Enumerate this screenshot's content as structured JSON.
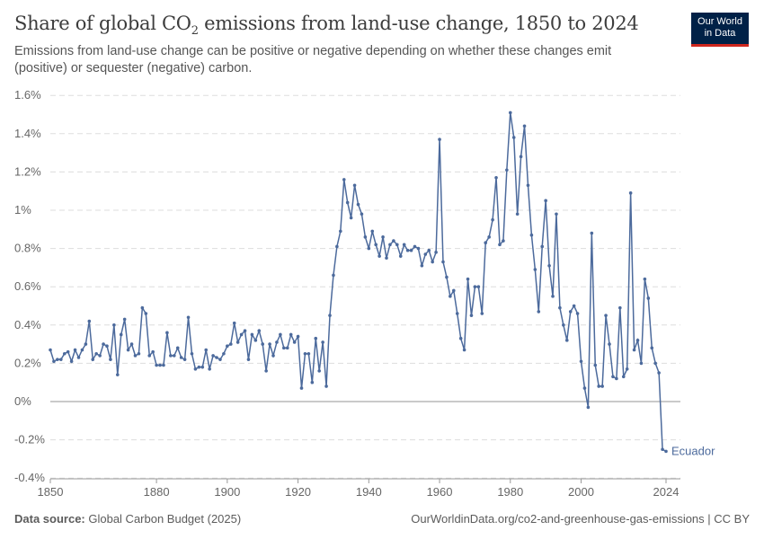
{
  "header": {
    "title_main": "Share of global CO",
    "title_sub": "2",
    "title_rest": " emissions from land-use change, 1850 to 2024",
    "subtitle": "Emissions from land-use change can be positive or negative depending on whether these changes emit (positive) or sequester (negative) carbon.",
    "logo_line1": "Our World",
    "logo_line2": "in Data"
  },
  "footer": {
    "source_label": "Data source:",
    "source": " Global Carbon Budget (2025)",
    "url": "OurWorldinData.org/co2-and-greenhouse-gas-emissions | CC BY"
  },
  "colors": {
    "line": "#4c6a9c",
    "grid": "#dddddd",
    "zero": "#aaaaaa"
  },
  "chart_data": {
    "type": "line",
    "title": "Share of global CO2 emissions from land-use change, 1850 to 2024",
    "xlabel": "",
    "ylabel": "",
    "ylim": [
      -0.4,
      1.6
    ],
    "xlim": [
      1850,
      2024
    ],
    "y_ticks": [
      -0.4,
      -0.2,
      0,
      0.2,
      0.4,
      0.6,
      0.8,
      1,
      1.2,
      1.4,
      1.6
    ],
    "y_tick_labels": [
      "-0.4%",
      "-0.2%",
      "0%",
      "0.2%",
      "0.4%",
      "0.6%",
      "0.8%",
      "1%",
      "1.2%",
      "1.4%",
      "1.6%"
    ],
    "x_ticks": [
      1850,
      1880,
      1900,
      1920,
      1940,
      1960,
      1980,
      2000,
      2024
    ],
    "x_tick_labels": [
      "1850",
      "1880",
      "1900",
      "1920",
      "1940",
      "1960",
      "1980",
      "2000",
      "2024"
    ],
    "grid": true,
    "series": [
      {
        "name": "Ecuador",
        "start_year": 1850,
        "unit": "%",
        "values": [
          0.27,
          0.21,
          0.22,
          0.22,
          0.25,
          0.26,
          0.21,
          0.27,
          0.23,
          0.27,
          0.3,
          0.42,
          0.22,
          0.25,
          0.24,
          0.3,
          0.29,
          0.22,
          0.4,
          0.14,
          0.35,
          0.43,
          0.27,
          0.3,
          0.24,
          0.25,
          0.49,
          0.46,
          0.24,
          0.26,
          0.19,
          0.19,
          0.19,
          0.36,
          0.24,
          0.24,
          0.28,
          0.23,
          0.22,
          0.44,
          0.25,
          0.17,
          0.18,
          0.18,
          0.27,
          0.17,
          0.24,
          0.23,
          0.22,
          0.25,
          0.29,
          0.3,
          0.41,
          0.31,
          0.35,
          0.37,
          0.22,
          0.35,
          0.32,
          0.37,
          0.3,
          0.16,
          0.3,
          0.24,
          0.31,
          0.35,
          0.28,
          0.28,
          0.35,
          0.31,
          0.34,
          0.07,
          0.25,
          0.25,
          0.1,
          0.33,
          0.16,
          0.31,
          0.08,
          0.45,
          0.66,
          0.81,
          0.89,
          1.16,
          1.04,
          0.96,
          1.13,
          1.03,
          0.98,
          0.86,
          0.8,
          0.89,
          0.82,
          0.76,
          0.86,
          0.75,
          0.82,
          0.84,
          0.82,
          0.76,
          0.82,
          0.79,
          0.79,
          0.81,
          0.8,
          0.71,
          0.77,
          0.79,
          0.73,
          0.78,
          1.37,
          0.73,
          0.65,
          0.55,
          0.58,
          0.46,
          0.33,
          0.27,
          0.64,
          0.45,
          0.6,
          0.6,
          0.46,
          0.83,
          0.86,
          0.95,
          1.17,
          0.82,
          0.84,
          1.21,
          1.51,
          1.38,
          0.98,
          1.28,
          1.44,
          1.13,
          0.87,
          0.69,
          0.47,
          0.81,
          1.05,
          0.71,
          0.55,
          0.98,
          0.49,
          0.4,
          0.32,
          0.47,
          0.5,
          0.46,
          0.21,
          0.07,
          -0.03,
          0.88,
          0.19,
          0.08,
          0.08,
          0.45,
          0.3,
          0.13,
          0.12,
          0.49,
          0.13,
          0.17,
          1.09,
          0.27,
          0.32,
          0.2,
          0.64,
          0.54,
          0.28,
          0.2,
          0.15,
          -0.25,
          -0.26
        ]
      }
    ]
  }
}
